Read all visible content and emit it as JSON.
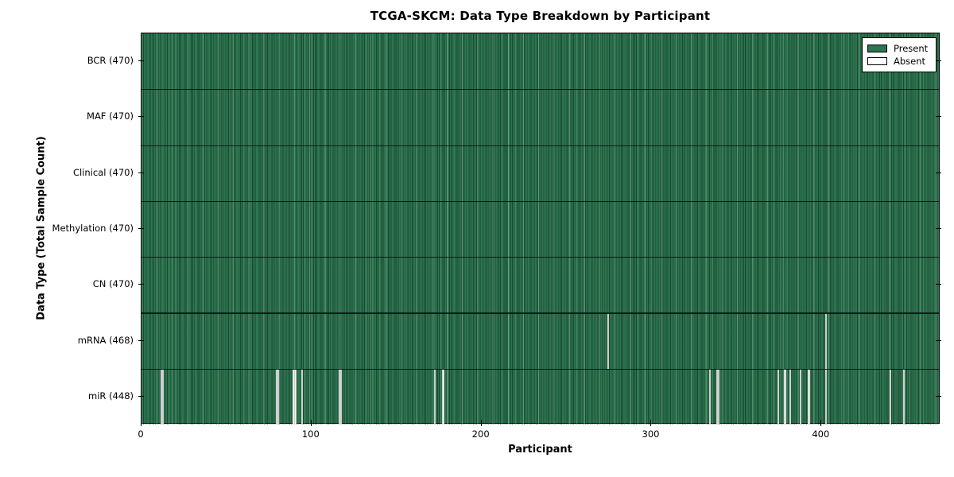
{
  "chart_data": {
    "type": "heatmap",
    "title": "TCGA-SKCM: Data Type Breakdown by Participant",
    "xlabel": "Participant",
    "ylabel": "Data Type (Total Sample Count)",
    "xlim": [
      0,
      470
    ],
    "x_ticks": [
      0,
      100,
      200,
      300,
      400
    ],
    "n_participants": 470,
    "grid": false,
    "legend": {
      "position": "upper right",
      "present_label": "Present",
      "absent_label": "Absent"
    },
    "colors": {
      "present": "#2d7450",
      "present_edge": "#14301f",
      "absent": "#f4f4f2",
      "frame": "#000000",
      "background": "#ffffff"
    },
    "rows": [
      {
        "name": "BCR",
        "label": "BCR (470)",
        "present_count": 470,
        "absent_indices": []
      },
      {
        "name": "MAF",
        "label": "MAF (470)",
        "present_count": 470,
        "absent_indices": []
      },
      {
        "name": "Clinical",
        "label": "Clinical (470)",
        "present_count": 470,
        "absent_indices": []
      },
      {
        "name": "Methylation",
        "label": "Methylation (470)",
        "present_count": 470,
        "absent_indices": []
      },
      {
        "name": "CN",
        "label": "CN (470)",
        "present_count": 470,
        "absent_indices": []
      },
      {
        "name": "mRNA",
        "label": "mRNA (468)",
        "present_count": 468,
        "absent_indices": [
          274,
          402
        ]
      },
      {
        "name": "miR",
        "label": "miR (448)",
        "present_count": 448,
        "absent_indices": [
          11,
          12,
          79,
          80,
          89,
          90,
          94,
          116,
          117,
          172,
          177,
          334,
          338,
          339,
          374,
          378,
          381,
          387,
          392,
          402,
          440,
          448
        ]
      }
    ]
  }
}
